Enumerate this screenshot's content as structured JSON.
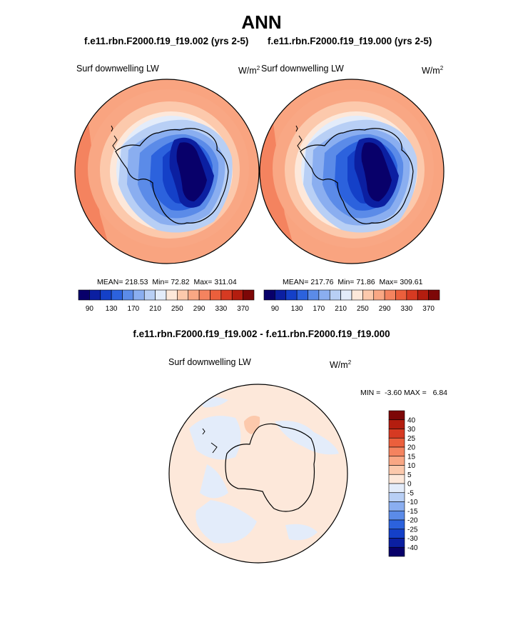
{
  "header": {
    "title": "ANN",
    "left_case": "f.e11.rbn.F2000.f19_f19.002 (yrs 2-5)",
    "right_case": "f.e11.rbn.F2000.f19_f19.000 (yrs 2-5)"
  },
  "panels": [
    {
      "variable": "Surf downwelling LW",
      "units": "W/m",
      "units_sup": "2",
      "stats": {
        "mean": "218.53",
        "min": "72.82",
        "max": "311.04"
      }
    },
    {
      "variable": "Surf downwelling LW",
      "units": "W/m",
      "units_sup": "2",
      "stats": {
        "mean": "217.76",
        "min": "71.86",
        "max": "309.61"
      }
    }
  ],
  "stats_labels": {
    "mean": "MEAN=",
    "min": "Min=",
    "max": "Max="
  },
  "colorbar": {
    "colors": [
      "#08006a",
      "#0b1fa1",
      "#1440c8",
      "#2c62dd",
      "#5b8be8",
      "#8aaef0",
      "#b8cff5",
      "#e3ecfa",
      "#fde8da",
      "#fcc9ac",
      "#f9a784",
      "#f4835f",
      "#eb5f3c",
      "#d63a22",
      "#b31d0f",
      "#7d0707"
    ],
    "tick_labels": [
      "90",
      "130",
      "170",
      "210",
      "250",
      "290",
      "330",
      "370"
    ]
  },
  "difference": {
    "title": "f.e11.rbn.F2000.f19_f19.002 - f.e11.rbn.F2000.f19_f19.000",
    "variable": "Surf downwelling LW",
    "units": "W/m",
    "units_sup": "2",
    "minmax": {
      "min_label": "MIN =",
      "min": "-3.60",
      "max_label": "MAX =",
      "max": "6.84"
    },
    "colorbar": {
      "colors": [
        "#7d0707",
        "#b31d0f",
        "#d63a22",
        "#eb5f3c",
        "#f4835f",
        "#f9a784",
        "#fcc9ac",
        "#fde8da",
        "#e3ecfa",
        "#b8cff5",
        "#8aaef0",
        "#5b8be8",
        "#2c62dd",
        "#1440c8",
        "#0b1fa1",
        "#08006a"
      ],
      "tick_labels": [
        "40",
        "30",
        "25",
        "20",
        "15",
        "10",
        "5",
        "0",
        "-5",
        "-10",
        "-15",
        "-20",
        "-25",
        "-30",
        "-40"
      ]
    }
  }
}
